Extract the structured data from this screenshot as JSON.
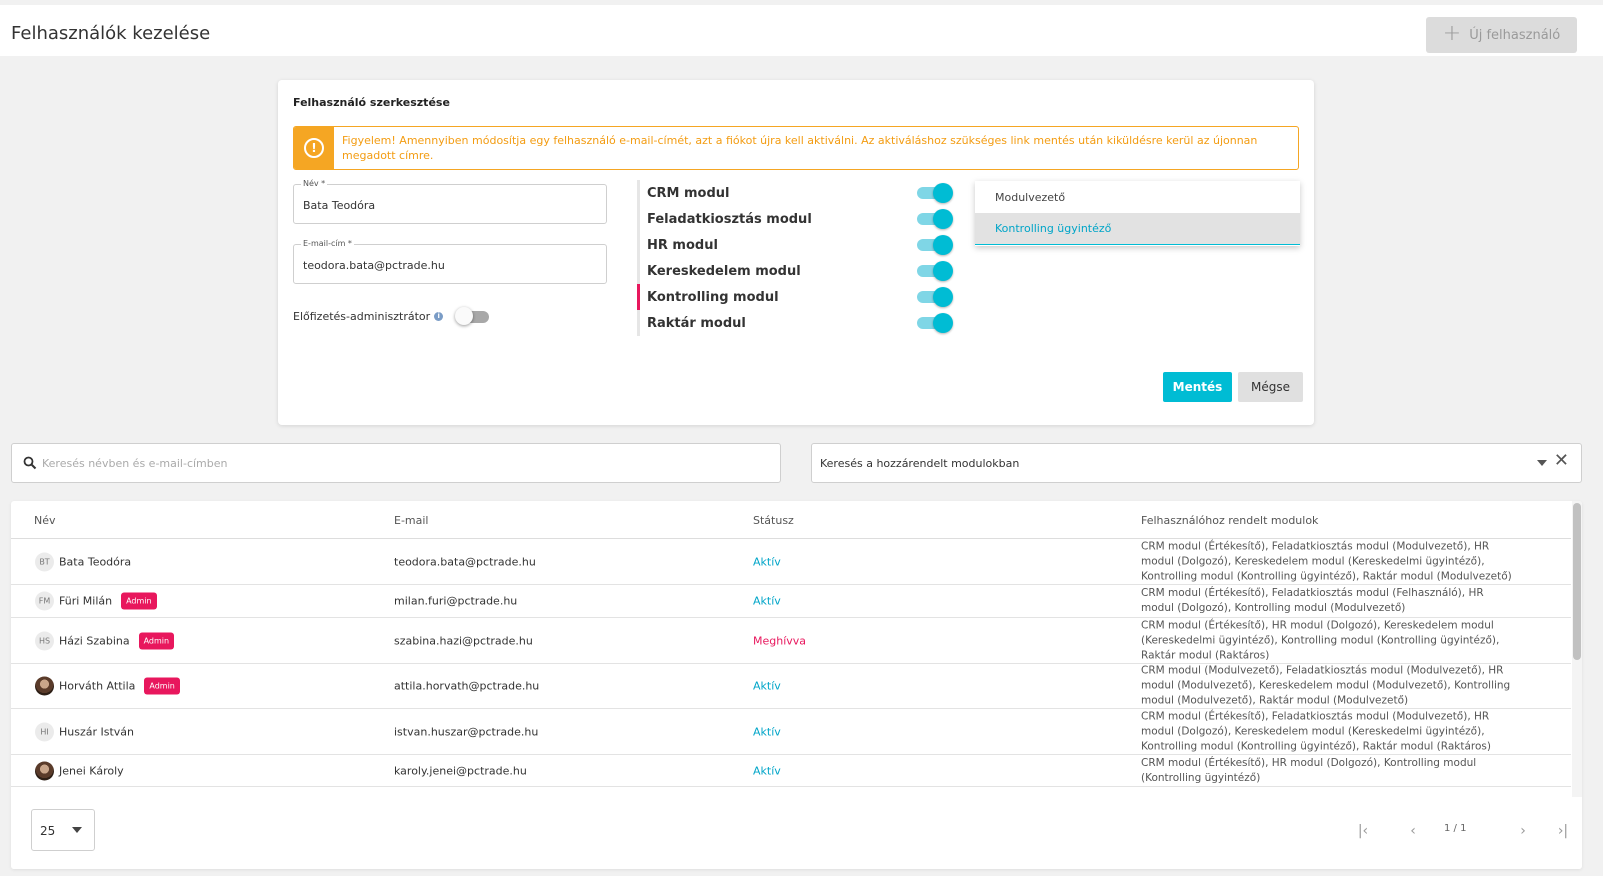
{
  "header": {
    "title": "Felhasználók kezelése",
    "new_user_label": "Új felhasználó",
    "plus_icon": "plus-icon"
  },
  "edit_form": {
    "title": "Felhasználó szerkesztése",
    "warning": "Figyelem! Amennyiben módosítja egy felhasználó e-mail-címét, azt a fiókot újra kell aktiválni. Az aktiváláshoz szükséges link mentés után kiküldésre kerül az újonnan megadott címre.",
    "warning_icon": "warning-icon",
    "name_label": "Név *",
    "name_value": "Bata Teodóra",
    "email_label": "E-mail-cím *",
    "email_value": "teodora.bata@pctrade.hu",
    "admin_label": "Előfizetés-adminisztrátor",
    "admin_enabled": false,
    "modules": [
      {
        "label": "CRM modul",
        "enabled": true
      },
      {
        "label": "Feladatkiosztás modul",
        "enabled": true
      },
      {
        "label": "HR modul",
        "enabled": true
      },
      {
        "label": "Kereskedelem modul",
        "enabled": true
      },
      {
        "label": "Kontrolling modul",
        "enabled": true,
        "active": true
      },
      {
        "label": "Raktár modul",
        "enabled": true
      }
    ],
    "role_options": [
      "Modulvezető",
      "Kontrolling ügyintéző"
    ],
    "role_selected": "Kontrolling ügyintéző",
    "save_label": "Mentés",
    "cancel_label": "Mégse"
  },
  "search": {
    "placeholder": "Keresés névben és e-mail-címben",
    "module_filter_placeholder": "Keresés a hozzárendelt modulokban"
  },
  "table": {
    "columns": [
      "Név",
      "E-mail",
      "Státusz",
      "Felhasználóhoz rendelt modulok"
    ],
    "rows": [
      {
        "initials": "BT",
        "name": "Bata Teodóra",
        "admin": "",
        "email": "teodora.bata@pctrade.hu",
        "status": "Aktív",
        "modules": "CRM modul (Értékesítő), Feladatkiosztás modul (Modulvezető), HR modul (Dolgozó), Kereskedelem modul (Kereskedelmi ügyintéző), Kontrolling modul (Kontrolling ügyintéző), Raktár modul (Modulvezető)"
      },
      {
        "initials": "FM",
        "name": "Füri Milán",
        "admin": "Admin",
        "email": "milan.furi@pctrade.hu",
        "status": "Aktív",
        "modules": "CRM modul (Értékesítő), Feladatkiosztás modul (Felhasználó), HR modul (Dolgozó), Kontrolling modul (Modulvezető)"
      },
      {
        "initials": "HS",
        "name": "Házi Szabina",
        "admin": "Admin",
        "email": "szabina.hazi@pctrade.hu",
        "status": "Meghívva",
        "modules": "CRM modul (Értékesítő), HR modul (Dolgozó), Kereskedelem modul (Kereskedelmi ügyintéző), Kontrolling modul (Kontrolling ügyintéző), Raktár modul (Raktáros)"
      },
      {
        "initials": "",
        "name": "Horváth Attila",
        "admin": "Admin",
        "email": "attila.horvath@pctrade.hu",
        "status": "Aktív",
        "modules": "CRM modul (Modulvezető), Feladatkiosztás modul (Modulvezető), HR modul (Modulvezető), Kereskedelem modul (Modulvezető), Kontrolling modul (Modulvezető), Raktár modul (Modulvezető)"
      },
      {
        "initials": "HI",
        "name": "Huszár István",
        "admin": "",
        "email": "istvan.huszar@pctrade.hu",
        "status": "Aktív",
        "modules": "CRM modul (Értékesítő), Feladatkiosztás modul (Modulvezető), HR modul (Dolgozó), Kereskedelem modul (Kereskedelmi ügyintéző), Kontrolling modul (Kontrolling ügyintéző), Raktár modul (Raktáros)"
      },
      {
        "initials": "",
        "name": "Jenei Károly",
        "admin": "",
        "email": "karoly.jenei@pctrade.hu",
        "status": "Aktív",
        "modules": "CRM modul (Értékesítő), HR modul (Dolgozó), Kontrolling modul (Kontrolling ügyintéző)"
      }
    ]
  },
  "pagination": {
    "page_size": "25",
    "page_info": "1 / 1",
    "first_icon": "first-page-icon",
    "prev_icon": "prev-page-icon",
    "next_icon": "next-page-icon",
    "last_icon": "last-page-icon"
  },
  "colors": {
    "accent": "#00bcd4",
    "warning": "#f5a623",
    "admin_badge": "#e8175d",
    "status_active": "#00a5c8",
    "status_invited": "#e8175d"
  }
}
